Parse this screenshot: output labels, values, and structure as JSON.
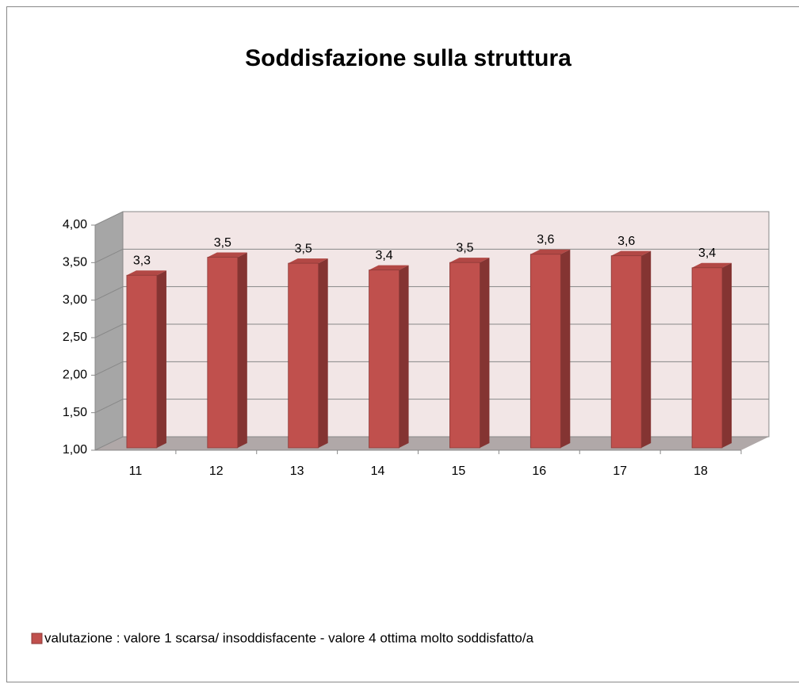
{
  "chart_data": {
    "type": "bar3d",
    "title": "Soddisfazione sulla struttura",
    "categories": [
      "11",
      "12",
      "13",
      "14",
      "15",
      "16",
      "17",
      "18"
    ],
    "series": [
      {
        "name": "valutazione : valore  1 scarsa/ insoddisfacente  -  valore  4 ottima molto soddisfatto/a",
        "color": "#c0504d",
        "values": [
          3.3,
          3.54,
          3.46,
          3.37,
          3.47,
          3.58,
          3.56,
          3.4
        ],
        "value_labels": [
          "3,3",
          "3,5",
          "3,5",
          "3,4",
          "3,5",
          "3,6",
          "3,6",
          "3,4"
        ]
      }
    ],
    "ylim": [
      1,
      4
    ],
    "yticks": [
      {
        "value": 1,
        "label": "1,00"
      },
      {
        "value": 1.5,
        "label": "1,50"
      },
      {
        "value": 2,
        "label": "2,00"
      },
      {
        "value": 2.5,
        "label": "2,50"
      },
      {
        "value": 3,
        "label": "3,00"
      },
      {
        "value": 3.5,
        "label": "3,50"
      },
      {
        "value": 4,
        "label": "4,00"
      }
    ],
    "grid": true,
    "legend": "bottom"
  }
}
